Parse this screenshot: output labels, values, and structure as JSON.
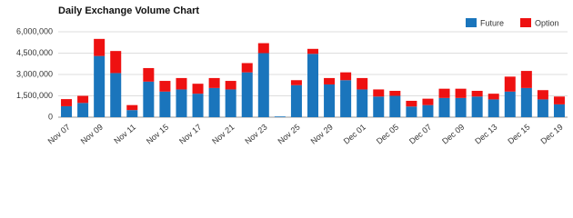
{
  "chart_data": {
    "type": "stacked_bar",
    "title": "Daily Exchange Volume Chart",
    "categories": [
      "Nov 07",
      null,
      "Nov 09",
      null,
      "Nov 11",
      null,
      "Nov 15",
      null,
      "Nov 17",
      null,
      "Nov 21",
      null,
      "Nov 23",
      null,
      "Nov 25",
      null,
      "Nov 29",
      null,
      "Dec 01",
      null,
      "Dec 05",
      null,
      "Dec 07",
      null,
      "Dec 09",
      null,
      "Dec 13",
      null,
      "Dec 15",
      null,
      "Dec 19"
    ],
    "series": [
      {
        "name": "Future",
        "color": "#1a75bc",
        "values": [
          770000,
          1000000,
          4300000,
          3100000,
          500000,
          2500000,
          1800000,
          1950000,
          1650000,
          2050000,
          1950000,
          3150000,
          4500000,
          50000,
          2250000,
          4450000,
          2300000,
          2600000,
          1950000,
          1450000,
          1500000,
          750000,
          850000,
          1350000,
          1350000,
          1450000,
          1250000,
          1800000,
          2050000,
          1250000,
          900000
        ]
      },
      {
        "name": "Option",
        "color": "#ee1111",
        "values": [
          500000,
          500000,
          1200000,
          1550000,
          350000,
          950000,
          750000,
          800000,
          700000,
          700000,
          600000,
          650000,
          700000,
          0,
          350000,
          350000,
          450000,
          550000,
          800000,
          500000,
          350000,
          400000,
          450000,
          650000,
          650000,
          400000,
          400000,
          1050000,
          1200000,
          650000,
          550000
        ]
      }
    ],
    "ylim": [
      0,
      6000000
    ],
    "yticks": [
      0,
      {
        "value": 1500000,
        "label": "1,500,000"
      },
      {
        "value": 3000000,
        "label": "3,000,000"
      },
      {
        "value": 4500000,
        "label": "4,500,000"
      },
      {
        "value": 6000000,
        "label": "6,000,000"
      }
    ],
    "grid": true,
    "legend": "top-right"
  }
}
